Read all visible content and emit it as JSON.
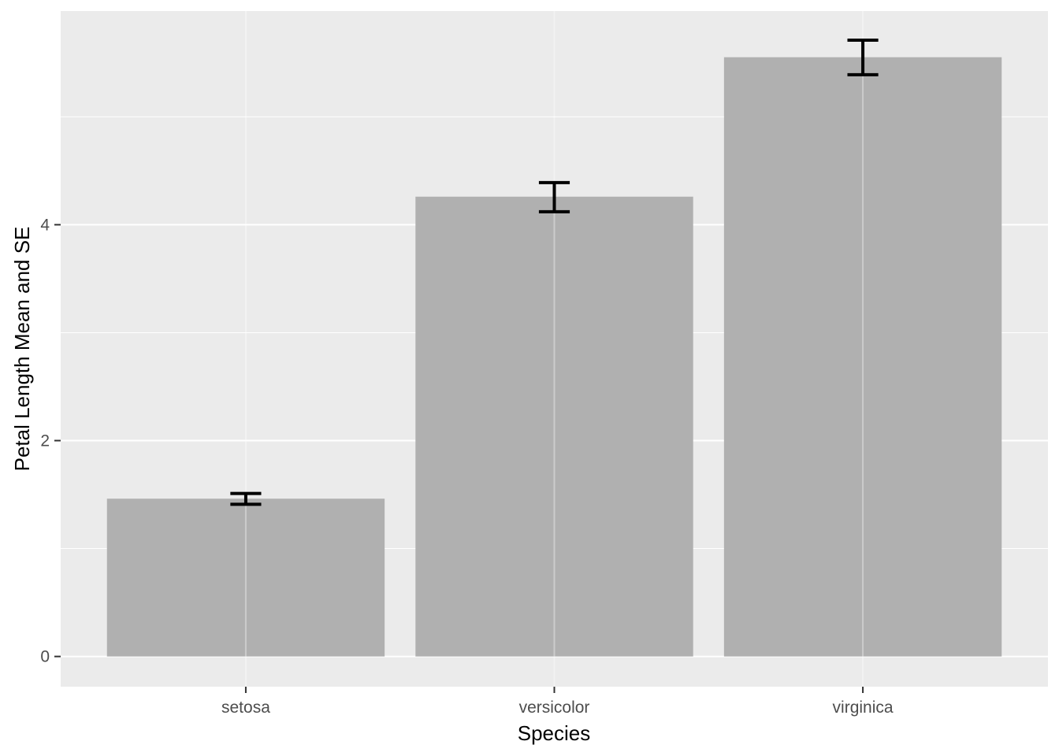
{
  "chart_data": {
    "type": "bar",
    "categories": [
      "setosa",
      "versicolor",
      "virginica"
    ],
    "values": [
      1.462,
      4.26,
      5.552
    ],
    "error_bars": {
      "lower": [
        1.41,
        4.12,
        5.39
      ],
      "upper": [
        1.51,
        4.39,
        5.71
      ]
    },
    "title": "",
    "xlabel": "Species",
    "ylabel": "Petal Length Mean and SE",
    "ylim": [
      -0.28,
      5.98
    ],
    "yticks": [
      0,
      2,
      4
    ],
    "y_minor_ticks": [
      1,
      3,
      5
    ],
    "grid": true,
    "legend": "none",
    "colors": {
      "panel": "#EBEBEB",
      "grid": "#FFFFFF",
      "bar": "#B0B0B0",
      "errorbar": "#000000",
      "tick": "#333333",
      "tick_label": "#4D4D4D",
      "axis_title": "#000000"
    }
  }
}
